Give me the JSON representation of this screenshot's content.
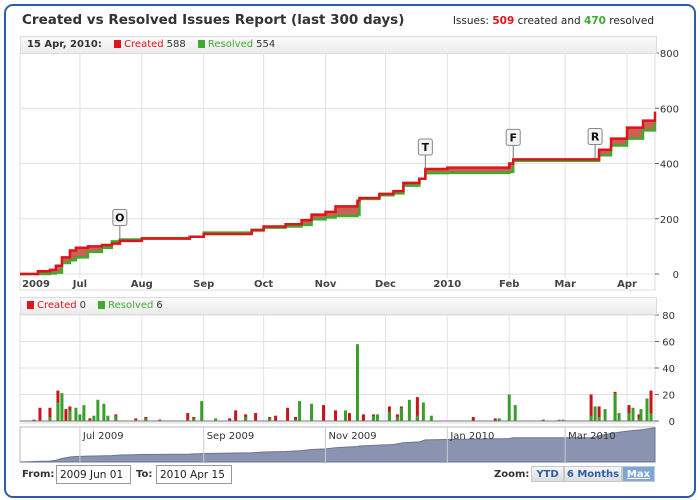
{
  "header": {
    "title": "Created vs Resolved Issues Report (last 300 days)",
    "summary_prefix": "Issues:",
    "created_count": "509",
    "summary_mid": "created and",
    "resolved_count": "470",
    "summary_suffix": "resolved"
  },
  "main_legend": {
    "date": "15 Apr, 2010:",
    "created_label": "Created",
    "created_value": "588",
    "resolved_label": "Resolved",
    "resolved_value": "554"
  },
  "bar_legend": {
    "created_label": "Created",
    "created_value": "0",
    "resolved_label": "Resolved",
    "resolved_value": "6"
  },
  "colors": {
    "created": "#e0121a",
    "resolved": "#3eaa2e",
    "gap_fill": "#c55a4c",
    "navigator": "#8a94b0",
    "frame": "#2a5fa8"
  },
  "chart_data": [
    {
      "type": "area",
      "xrange": [
        "2009-06-01",
        "2010-04-15"
      ],
      "ylim": [
        0,
        800
      ],
      "yticks": [
        0,
        200,
        400,
        600,
        800
      ],
      "xtick_labels": [
        [
          "2009-06-01",
          "2009"
        ],
        [
          "2009-07-01",
          "Jul"
        ],
        [
          "2009-08-01",
          "Aug"
        ],
        [
          "2009-09-01",
          "Sep"
        ],
        [
          "2009-10-01",
          "Oct"
        ],
        [
          "2009-11-01",
          "Nov"
        ],
        [
          "2009-12-01",
          "Dec"
        ],
        [
          "2010-01-01",
          "2010"
        ],
        [
          "2010-02-01",
          "Feb"
        ],
        [
          "2010-03-01",
          "Mar"
        ],
        [
          "2010-04-01",
          "Apr"
        ]
      ],
      "grid": true,
      "series_names": [
        "Created",
        "Resolved"
      ],
      "points": [
        [
          "2009-06-01",
          0,
          0
        ],
        [
          "2009-06-10",
          10,
          0
        ],
        [
          "2009-06-16",
          15,
          2
        ],
        [
          "2009-06-19",
          30,
          5
        ],
        [
          "2009-06-22",
          60,
          40
        ],
        [
          "2009-06-26",
          85,
          50
        ],
        [
          "2009-06-29",
          95,
          60
        ],
        [
          "2009-07-05",
          100,
          80
        ],
        [
          "2009-07-12",
          105,
          95
        ],
        [
          "2009-07-17",
          110,
          118
        ],
        [
          "2009-07-21",
          120,
          125
        ],
        [
          "2009-08-01",
          128,
          130
        ],
        [
          "2009-08-25",
          135,
          135
        ],
        [
          "2009-09-01",
          145,
          150
        ],
        [
          "2009-09-25",
          158,
          160
        ],
        [
          "2009-10-01",
          172,
          168
        ],
        [
          "2009-10-12",
          180,
          172
        ],
        [
          "2009-10-20",
          195,
          178
        ],
        [
          "2009-10-25",
          215,
          198
        ],
        [
          "2009-11-01",
          225,
          205
        ],
        [
          "2009-11-06",
          245,
          210
        ],
        [
          "2009-11-17",
          265,
          215
        ],
        [
          "2009-11-18",
          275,
          272
        ],
        [
          "2009-11-28",
          290,
          285
        ],
        [
          "2009-12-05",
          300,
          292
        ],
        [
          "2009-12-10",
          330,
          320
        ],
        [
          "2009-12-18",
          345,
          345
        ],
        [
          "2009-12-21",
          380,
          365
        ],
        [
          "2010-01-01",
          385,
          366
        ],
        [
          "2010-02-01",
          400,
          370
        ],
        [
          "2010-02-03",
          415,
          410
        ],
        [
          "2010-03-15",
          415,
          410
        ],
        [
          "2010-03-18",
          450,
          430
        ],
        [
          "2010-03-24",
          490,
          465
        ],
        [
          "2010-04-01",
          530,
          490
        ],
        [
          "2010-04-09",
          555,
          520
        ],
        [
          "2010-04-15",
          588,
          554
        ]
      ],
      "flags": [
        [
          "2009-07-21",
          "O",
          125
        ],
        [
          "2009-12-21",
          "T",
          380
        ],
        [
          "2010-02-03",
          "F",
          415
        ],
        [
          "2010-03-16",
          "R",
          418
        ]
      ]
    },
    {
      "type": "bar",
      "ylim": [
        0,
        80
      ],
      "yticks": [
        0,
        20,
        40,
        60,
        80
      ],
      "series_names": [
        "Created",
        "Resolved"
      ],
      "bars": [
        [
          "2009-06-08",
          1,
          0
        ],
        [
          "2009-06-11",
          10,
          0
        ],
        [
          "2009-06-16",
          10,
          3
        ],
        [
          "2009-06-20",
          23,
          14
        ],
        [
          "2009-06-22",
          0,
          21
        ],
        [
          "2009-06-24",
          9,
          0
        ],
        [
          "2009-06-26",
          11,
          8
        ],
        [
          "2009-06-29",
          0,
          10
        ],
        [
          "2009-07-01",
          0,
          5
        ],
        [
          "2009-07-03",
          0,
          12
        ],
        [
          "2009-07-06",
          2,
          0
        ],
        [
          "2009-07-08",
          0,
          4
        ],
        [
          "2009-07-10",
          0,
          16
        ],
        [
          "2009-07-13",
          0,
          13
        ],
        [
          "2009-07-15",
          0,
          4
        ],
        [
          "2009-07-19",
          5,
          4
        ],
        [
          "2009-07-29",
          2,
          1
        ],
        [
          "2009-08-03",
          3,
          2
        ],
        [
          "2009-08-10",
          1,
          0
        ],
        [
          "2009-08-24",
          6,
          1
        ],
        [
          "2009-08-27",
          3,
          2
        ],
        [
          "2009-08-31",
          0,
          15
        ],
        [
          "2009-09-07",
          0,
          2
        ],
        [
          "2009-09-14",
          2,
          0
        ],
        [
          "2009-09-17",
          8,
          0
        ],
        [
          "2009-09-22",
          5,
          3
        ],
        [
          "2009-09-27",
          6,
          0
        ],
        [
          "2009-10-04",
          3,
          2
        ],
        [
          "2009-10-07",
          4,
          0
        ],
        [
          "2009-10-13",
          10,
          0
        ],
        [
          "2009-10-17",
          3,
          1
        ],
        [
          "2009-10-19",
          0,
          15
        ],
        [
          "2009-10-25",
          0,
          13
        ],
        [
          "2009-10-31",
          12,
          0
        ],
        [
          "2009-11-06",
          8,
          0
        ],
        [
          "2009-11-11",
          0,
          8
        ],
        [
          "2009-11-13",
          6,
          0
        ],
        [
          "2009-11-17",
          0,
          58
        ],
        [
          "2009-11-20",
          5,
          0
        ],
        [
          "2009-11-25",
          5,
          4
        ],
        [
          "2009-11-27",
          0,
          5
        ],
        [
          "2009-12-03",
          11,
          7
        ],
        [
          "2009-12-07",
          5,
          3
        ],
        [
          "2009-12-09",
          11,
          10
        ],
        [
          "2009-12-13",
          0,
          16
        ],
        [
          "2009-12-17",
          18,
          4
        ],
        [
          "2009-12-20",
          0,
          14
        ],
        [
          "2009-12-24",
          0,
          4
        ],
        [
          "2010-01-14",
          3,
          0
        ],
        [
          "2010-01-25",
          2,
          0
        ],
        [
          "2010-01-27",
          0,
          2
        ],
        [
          "2010-02-01",
          0,
          20
        ],
        [
          "2010-02-04",
          0,
          12
        ],
        [
          "2010-02-18",
          1,
          0
        ],
        [
          "2010-02-26",
          0,
          1
        ],
        [
          "2010-02-28",
          0,
          1
        ],
        [
          "2010-03-14",
          20,
          4
        ],
        [
          "2010-03-16",
          0,
          11
        ],
        [
          "2010-03-18",
          11,
          3
        ],
        [
          "2010-03-21",
          0,
          9
        ],
        [
          "2010-03-26",
          22,
          21
        ],
        [
          "2010-03-28",
          0,
          6
        ],
        [
          "2010-04-02",
          12,
          6
        ],
        [
          "2010-04-04",
          0,
          10
        ],
        [
          "2010-04-07",
          5,
          2
        ],
        [
          "2010-04-08",
          0,
          9
        ],
        [
          "2010-04-11",
          0,
          17
        ],
        [
          "2010-04-13",
          23,
          6
        ]
      ]
    },
    {
      "type": "area",
      "role": "navigator",
      "ylim": [
        0,
        600
      ],
      "xtick_labels": [
        [
          "2009-07-01",
          "Jul 2009"
        ],
        [
          "2009-09-01",
          "Sep 2009"
        ],
        [
          "2009-11-01",
          "Nov 2009"
        ],
        [
          "2010-01-01",
          "Jan 2010"
        ],
        [
          "2010-03-01",
          "Mar 2010"
        ]
      ]
    }
  ],
  "range": {
    "from_label": "From:",
    "from_value": "2009 Jun 01",
    "to_label": "To:",
    "to_value": "2010 Apr 15"
  },
  "zoom": {
    "label": "Zoom:",
    "buttons": [
      {
        "label": "YTD"
      },
      {
        "label": "6 Months"
      },
      {
        "label": "Max",
        "selected": true
      }
    ]
  }
}
